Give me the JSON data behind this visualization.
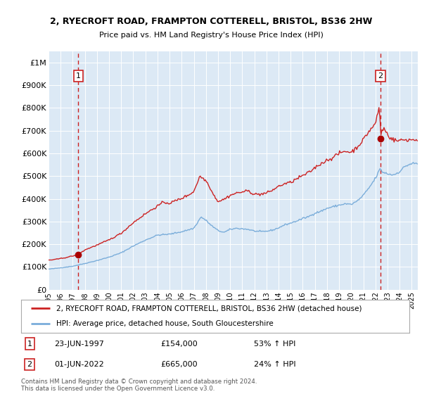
{
  "title_line1": "2, RYECROFT ROAD, FRAMPTON COTTERELL, BRISTOL, BS36 2HW",
  "title_line2": "Price paid vs. HM Land Registry's House Price Index (HPI)",
  "legend_line1": "2, RYECROFT ROAD, FRAMPTON COTTERELL, BRISTOL, BS36 2HW (detached house)",
  "legend_line2": "HPI: Average price, detached house, South Gloucestershire",
  "footnote": "Contains HM Land Registry data © Crown copyright and database right 2024.\nThis data is licensed under the Open Government Licence v3.0.",
  "annotation1_label": "1",
  "annotation1_date": "23-JUN-1997",
  "annotation1_price": "£154,000",
  "annotation1_hpi": "53% ↑ HPI",
  "annotation2_label": "2",
  "annotation2_date": "01-JUN-2022",
  "annotation2_price": "£665,000",
  "annotation2_hpi": "24% ↑ HPI",
  "sale1_x": 1997.458,
  "sale1_y": 154000,
  "sale2_x": 2022.416,
  "sale2_y": 665000,
  "hpi_color": "#7aadda",
  "price_color": "#cc2222",
  "dot_color": "#aa0000",
  "background_plot": "#dce9f5",
  "background_fig": "#ffffff",
  "grid_color": "#ffffff",
  "vline_color": "#cc2222",
  "xlim": [
    1995.0,
    2025.5
  ],
  "ylim": [
    0,
    1050000
  ],
  "yticks": [
    0,
    100000,
    200000,
    300000,
    400000,
    500000,
    600000,
    700000,
    800000,
    900000,
    1000000
  ],
  "ytick_labels": [
    "£0",
    "£100K",
    "£200K",
    "£300K",
    "£400K",
    "£500K",
    "£600K",
    "£700K",
    "£800K",
    "£900K",
    "£1M"
  ],
  "xtick_years": [
    1995,
    1996,
    1997,
    1998,
    1999,
    2000,
    2001,
    2002,
    2003,
    2004,
    2005,
    2006,
    2007,
    2008,
    2009,
    2010,
    2011,
    2012,
    2013,
    2014,
    2015,
    2016,
    2017,
    2018,
    2019,
    2020,
    2021,
    2022,
    2023,
    2024,
    2025
  ]
}
